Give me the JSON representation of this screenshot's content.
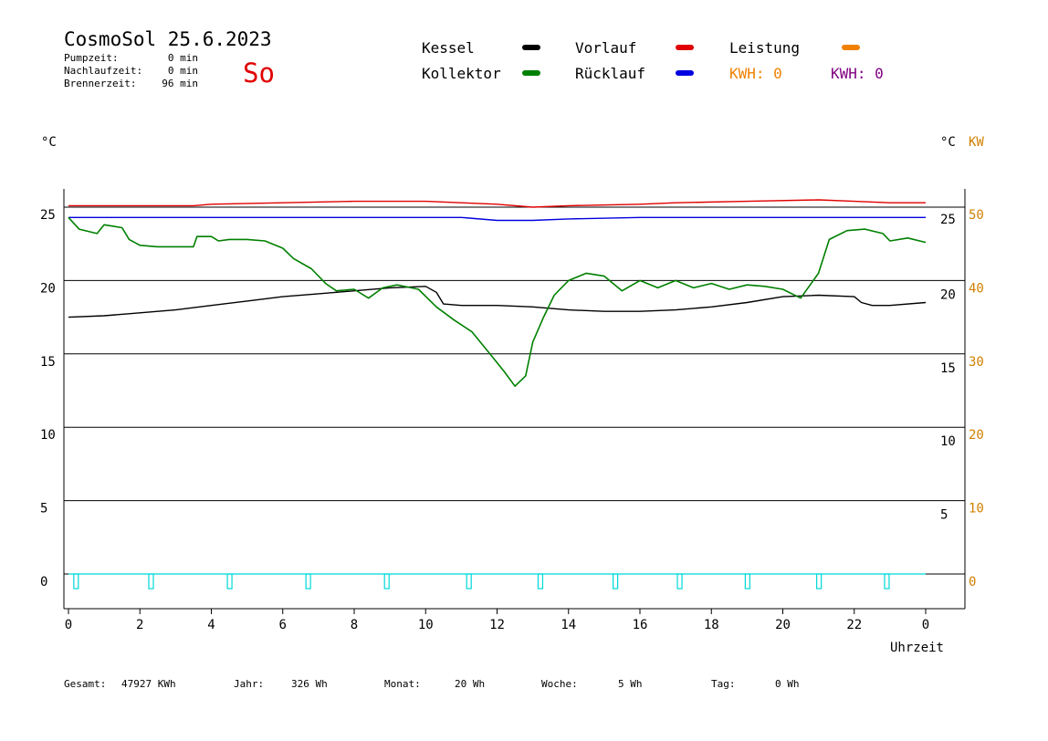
{
  "header": {
    "title": "CosmoSol 25.6.2023",
    "day": "So",
    "stats": [
      {
        "label": "Pumpzeit:",
        "value": "0 min"
      },
      {
        "label": "Nachlaufzeit:",
        "value": "0 min"
      },
      {
        "label": "Brennerzeit:",
        "value": "96 min"
      }
    ]
  },
  "legend": {
    "kessel": "Kessel",
    "kollektor": "Kollektor",
    "vorlauf": "Vorlauf",
    "ruecklauf": "Rücklauf",
    "leistung": "Leistung",
    "kwh_1": "KWH: 0",
    "kwh_2": "KWH: 0"
  },
  "colors": {
    "kessel": "#000000",
    "kollektor": "#008000",
    "vorlauf": "#e00000",
    "ruecklauf": "#0000e0",
    "leistung": "#f08000",
    "kwh_2": "#800080",
    "pump": "#00d8d8",
    "accent_day": "#e00000"
  },
  "axes": {
    "left_unit": "°C",
    "right_unit_1": "°C",
    "right_unit_2": "KW",
    "x_label": "Uhrzeit"
  },
  "footer": [
    {
      "label": "Gesamt:",
      "value": "47927 KWh"
    },
    {
      "label": "Jahr:",
      "value": "326 Wh"
    },
    {
      "label": "Monat:",
      "value": "20 Wh"
    },
    {
      "label": "Woche:",
      "value": "5 Wh"
    },
    {
      "label": "Tag:",
      "value": "0 Wh"
    }
  ],
  "chart_data": {
    "type": "line",
    "x_ticks": [
      "0",
      "2",
      "4",
      "6",
      "8",
      "10",
      "12",
      "14",
      "16",
      "18",
      "20",
      "22",
      "0"
    ],
    "x_range": [
      0,
      24
    ],
    "y_left_ticks": [
      "25",
      "20",
      "15",
      "10",
      "5",
      "0"
    ],
    "y_left_range": [
      -2.5,
      26.5
    ],
    "y_right_inner_ticks": [
      "25",
      "20",
      "15",
      "10",
      "5"
    ],
    "y_right_outer_ticks": [
      "50",
      "40",
      "30",
      "20",
      "10",
      "0"
    ],
    "grid": true,
    "series": [
      {
        "name": "Vorlauf",
        "color": "#e00000",
        "points": [
          [
            0,
            25.1
          ],
          [
            3.5,
            25.1
          ],
          [
            4,
            25.2
          ],
          [
            6,
            25.3
          ],
          [
            8,
            25.4
          ],
          [
            10,
            25.4
          ],
          [
            11,
            25.3
          ],
          [
            12,
            25.2
          ],
          [
            13,
            25.0
          ],
          [
            14,
            25.1
          ],
          [
            16,
            25.2
          ],
          [
            17,
            25.3
          ],
          [
            19,
            25.4
          ],
          [
            21,
            25.5
          ],
          [
            22,
            25.4
          ],
          [
            23,
            25.3
          ],
          [
            24,
            25.3
          ]
        ]
      },
      {
        "name": "Rücklauf",
        "color": "#0000e0",
        "points": [
          [
            0,
            24.3
          ],
          [
            4,
            24.3
          ],
          [
            8,
            24.3
          ],
          [
            11,
            24.3
          ],
          [
            12,
            24.1
          ],
          [
            13,
            24.1
          ],
          [
            14,
            24.2
          ],
          [
            16,
            24.3
          ],
          [
            20,
            24.3
          ],
          [
            24,
            24.3
          ]
        ]
      },
      {
        "name": "Kessel",
        "color": "#000000",
        "points": [
          [
            0,
            17.5
          ],
          [
            1,
            17.6
          ],
          [
            2,
            17.8
          ],
          [
            3,
            18.0
          ],
          [
            4,
            18.3
          ],
          [
            5,
            18.6
          ],
          [
            6,
            18.9
          ],
          [
            7,
            19.1
          ],
          [
            8,
            19.3
          ],
          [
            9,
            19.5
          ],
          [
            10,
            19.6
          ],
          [
            10.3,
            19.2
          ],
          [
            10.5,
            18.4
          ],
          [
            11,
            18.3
          ],
          [
            12,
            18.3
          ],
          [
            13,
            18.2
          ],
          [
            14,
            18.0
          ],
          [
            15,
            17.9
          ],
          [
            16,
            17.9
          ],
          [
            17,
            18.0
          ],
          [
            18,
            18.2
          ],
          [
            19,
            18.5
          ],
          [
            20,
            18.9
          ],
          [
            21,
            19.0
          ],
          [
            22,
            18.9
          ],
          [
            22.2,
            18.5
          ],
          [
            22.5,
            18.3
          ],
          [
            23,
            18.3
          ],
          [
            24,
            18.5
          ]
        ]
      },
      {
        "name": "Kollektor",
        "color": "#008000",
        "points": [
          [
            0,
            24.3
          ],
          [
            0.3,
            23.5
          ],
          [
            0.8,
            23.2
          ],
          [
            1,
            23.8
          ],
          [
            1.5,
            23.6
          ],
          [
            1.7,
            22.8
          ],
          [
            2,
            22.4
          ],
          [
            2.5,
            22.3
          ],
          [
            3,
            22.3
          ],
          [
            3.5,
            22.3
          ],
          [
            3.6,
            23.0
          ],
          [
            4,
            23.0
          ],
          [
            4.2,
            22.7
          ],
          [
            4.5,
            22.8
          ],
          [
            5,
            22.8
          ],
          [
            5.5,
            22.7
          ],
          [
            6,
            22.2
          ],
          [
            6.3,
            21.5
          ],
          [
            6.8,
            20.8
          ],
          [
            7.2,
            19.8
          ],
          [
            7.5,
            19.3
          ],
          [
            8,
            19.4
          ],
          [
            8.4,
            18.8
          ],
          [
            8.8,
            19.5
          ],
          [
            9.2,
            19.7
          ],
          [
            9.8,
            19.4
          ],
          [
            10.3,
            18.2
          ],
          [
            10.8,
            17.3
          ],
          [
            11.3,
            16.5
          ],
          [
            11.8,
            15.0
          ],
          [
            12.2,
            13.8
          ],
          [
            12.5,
            12.8
          ],
          [
            12.8,
            13.5
          ],
          [
            13,
            15.8
          ],
          [
            13.3,
            17.5
          ],
          [
            13.6,
            19.0
          ],
          [
            14,
            20.0
          ],
          [
            14.5,
            20.5
          ],
          [
            15,
            20.3
          ],
          [
            15.5,
            19.3
          ],
          [
            16,
            20.0
          ],
          [
            16.5,
            19.5
          ],
          [
            17,
            20.0
          ],
          [
            17.5,
            19.5
          ],
          [
            18,
            19.8
          ],
          [
            18.5,
            19.4
          ],
          [
            19,
            19.7
          ],
          [
            19.5,
            19.6
          ],
          [
            20,
            19.4
          ],
          [
            20.5,
            18.8
          ],
          [
            21,
            20.5
          ],
          [
            21.3,
            22.8
          ],
          [
            21.8,
            23.4
          ],
          [
            22.3,
            23.5
          ],
          [
            22.8,
            23.2
          ],
          [
            23,
            22.7
          ],
          [
            23.5,
            22.9
          ],
          [
            24,
            22.6
          ]
        ]
      }
    ],
    "pump_markers_hours": [
      0.2,
      2.3,
      4.5,
      6.7,
      8.9,
      11.2,
      13.2,
      15.3,
      17.1,
      19.0,
      21.0,
      22.9
    ]
  }
}
